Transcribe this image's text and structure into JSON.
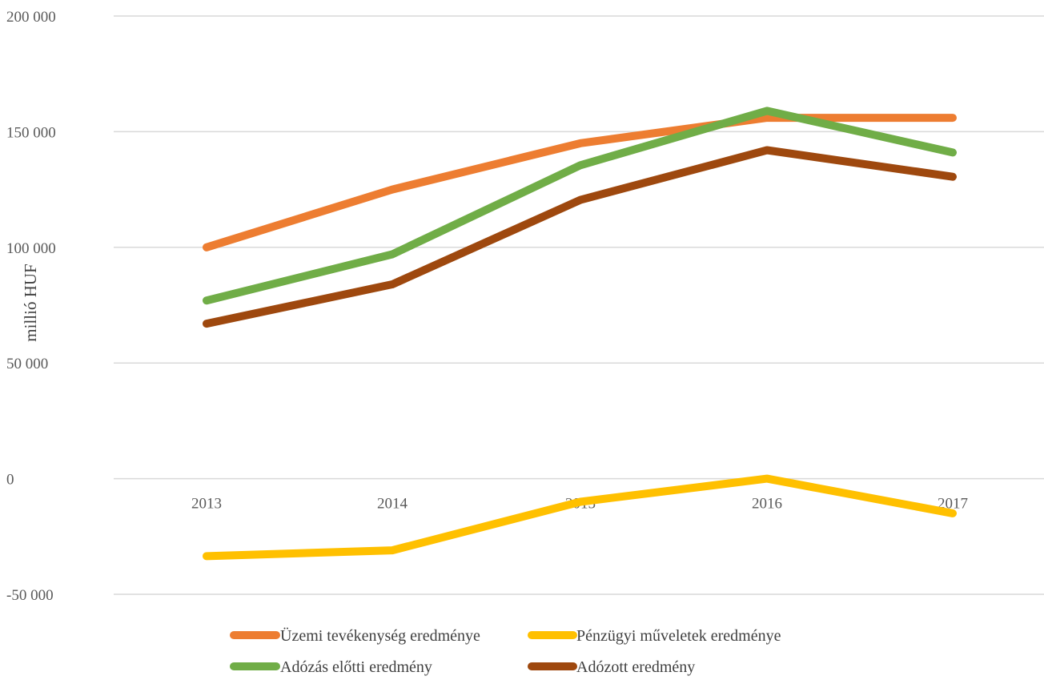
{
  "chart_data": {
    "type": "line",
    "title": "",
    "xlabel": "",
    "ylabel": "millió HUF",
    "ylim": [
      -50000,
      200000
    ],
    "yticks": [
      -50000,
      0,
      50000,
      100000,
      150000,
      200000
    ],
    "ytick_labels": [
      "-50 000",
      "0",
      "50 000",
      "100 000",
      "150 000",
      "200 000"
    ],
    "categories": [
      "2013",
      "2014",
      "2015",
      "2016",
      "2017"
    ],
    "grid": true,
    "legend_position": "bottom",
    "series": [
      {
        "name": "Üzemi tevékenység eredménye",
        "color": "#ED7D31",
        "values": [
          100000,
          125000,
          145000,
          156000,
          156000
        ]
      },
      {
        "name": "Pénzügyi műveletek eredménye",
        "color": "#FFC000",
        "values": [
          -33500,
          -31000,
          -10000,
          0,
          -15000
        ]
      },
      {
        "name": "Adózás előtti eredmény",
        "color": "#70AD47",
        "values": [
          77000,
          97000,
          135500,
          159000,
          141000
        ]
      },
      {
        "name": "Adózott eredmény",
        "color": "#9E480E",
        "values": [
          67000,
          84000,
          120500,
          142000,
          130500
        ]
      }
    ]
  }
}
